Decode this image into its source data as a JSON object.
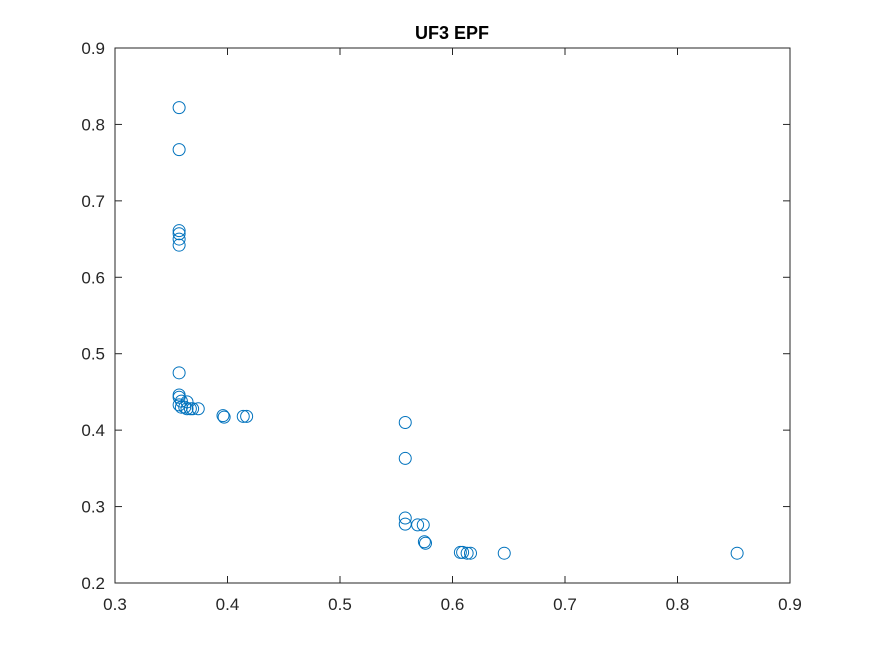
{
  "chart_data": {
    "type": "scatter",
    "title": "UF3 EPF",
    "xlabel": "",
    "ylabel": "",
    "xlim": [
      0.3,
      0.9
    ],
    "ylim": [
      0.2,
      0.9
    ],
    "xticks": [
      0.3,
      0.4,
      0.5,
      0.6,
      0.7,
      0.8,
      0.9
    ],
    "yticks": [
      0.2,
      0.3,
      0.4,
      0.5,
      0.6,
      0.7,
      0.8,
      0.9
    ],
    "xtick_labels": [
      "0.3",
      "0.4",
      "0.5",
      "0.6",
      "0.7",
      "0.8",
      "0.9"
    ],
    "ytick_labels": [
      "0.2",
      "0.3",
      "0.4",
      "0.5",
      "0.6",
      "0.7",
      "0.8",
      "0.9"
    ],
    "grid": false,
    "marker": "open-circle",
    "marker_color": "#0072BD",
    "series": [
      {
        "points": [
          [
            0.357,
            0.822
          ],
          [
            0.357,
            0.767
          ],
          [
            0.357,
            0.661
          ],
          [
            0.357,
            0.657
          ],
          [
            0.357,
            0.65
          ],
          [
            0.357,
            0.642
          ],
          [
            0.357,
            0.475
          ],
          [
            0.357,
            0.446
          ],
          [
            0.357,
            0.443
          ],
          [
            0.359,
            0.438
          ],
          [
            0.357,
            0.433
          ],
          [
            0.359,
            0.43
          ],
          [
            0.362,
            0.43
          ],
          [
            0.364,
            0.437
          ],
          [
            0.364,
            0.428
          ],
          [
            0.367,
            0.428
          ],
          [
            0.369,
            0.428
          ],
          [
            0.374,
            0.428
          ],
          [
            0.396,
            0.419
          ],
          [
            0.397,
            0.417
          ],
          [
            0.414,
            0.418
          ],
          [
            0.417,
            0.418
          ],
          [
            0.558,
            0.41
          ],
          [
            0.558,
            0.363
          ],
          [
            0.558,
            0.285
          ],
          [
            0.558,
            0.277
          ],
          [
            0.569,
            0.276
          ],
          [
            0.574,
            0.276
          ],
          [
            0.575,
            0.254
          ],
          [
            0.576,
            0.252
          ],
          [
            0.607,
            0.24
          ],
          [
            0.609,
            0.24
          ],
          [
            0.613,
            0.239
          ],
          [
            0.616,
            0.239
          ],
          [
            0.646,
            0.239
          ],
          [
            0.853,
            0.239
          ]
        ]
      }
    ]
  }
}
